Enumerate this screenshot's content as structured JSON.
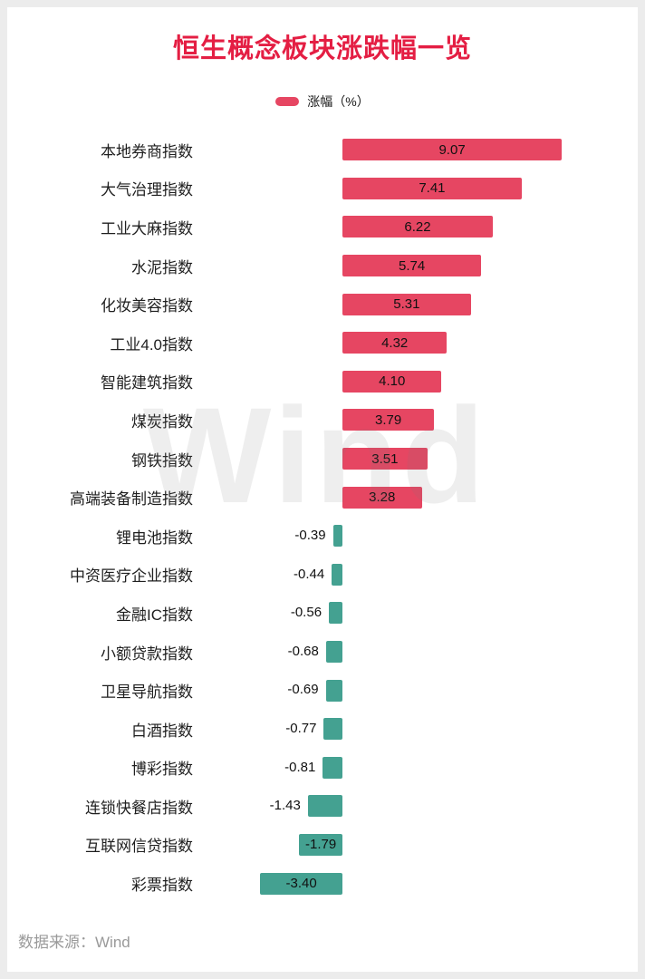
{
  "watermark": "Wind",
  "source": "数据来源：Wind",
  "chart_data": {
    "type": "bar",
    "orientation": "horizontal",
    "title": "恒生概念板块涨跌幅一览",
    "legend_label": "涨幅（%）",
    "categories": [
      "本地券商指数",
      "大气治理指数",
      "工业大麻指数",
      "水泥指数",
      "化妆美容指数",
      "工业4.0指数",
      "智能建筑指数",
      "煤炭指数",
      "钢铁指数",
      "高端装备制造指数",
      "锂电池指数",
      "中资医疗企业指数",
      "金融IC指数",
      "小额贷款指数",
      "卫星导航指数",
      "白酒指数",
      "博彩指数",
      "连锁快餐店指数",
      "互联网信贷指数",
      "彩票指数"
    ],
    "values": [
      9.07,
      7.41,
      6.22,
      5.74,
      5.31,
      4.32,
      4.1,
      3.79,
      3.51,
      3.28,
      -0.39,
      -0.44,
      -0.56,
      -0.68,
      -0.69,
      -0.77,
      -0.81,
      -1.43,
      -1.79,
      -3.4
    ],
    "xlim": [
      -4,
      10
    ],
    "legend_position": "top-center",
    "grid": false,
    "colors": {
      "positive_bar": "#e64662",
      "negative_bar": "#44a191",
      "title": "#e41e43",
      "value_label": "#111111",
      "category_label": "#1f1f1f",
      "source_text": "#9a9a9a"
    }
  }
}
